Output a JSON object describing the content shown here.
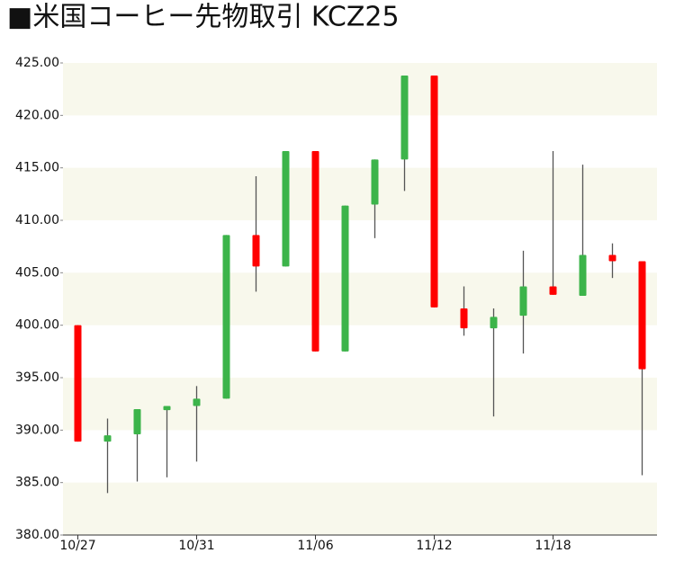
{
  "chart_data": {
    "type": "candlestick",
    "title": "■米国コーヒー先物取引 KCZ25",
    "categories": [
      "10/27",
      null,
      null,
      null,
      "10/31",
      null,
      null,
      null,
      "11/06",
      null,
      null,
      null,
      "11/12",
      null,
      null,
      null,
      "11/18",
      null,
      null,
      null
    ],
    "series": [
      {
        "open": [
          400.0,
          388.9,
          389.6,
          391.9,
          392.3,
          393.0,
          408.6,
          405.6,
          416.6,
          397.5,
          411.5,
          415.8,
          423.8,
          401.6,
          399.7,
          400.9,
          403.7,
          402.8,
          406.7,
          406.1
        ],
        "high": [
          400.0,
          391.1,
          392.0,
          392.3,
          394.2,
          408.6,
          414.2,
          416.6,
          416.6,
          411.4,
          415.8,
          423.8,
          423.8,
          403.7,
          401.6,
          407.1,
          416.6,
          415.3,
          407.8,
          406.1
        ],
        "low": [
          388.9,
          384.0,
          385.1,
          385.5,
          387.0,
          393.0,
          403.2,
          405.6,
          397.5,
          397.5,
          408.3,
          412.8,
          401.7,
          399.0,
          391.3,
          397.3,
          402.9,
          402.8,
          404.5,
          385.7
        ],
        "close": [
          388.9,
          389.5,
          392.0,
          392.3,
          393.0,
          408.6,
          405.6,
          416.6,
          397.5,
          411.4,
          415.8,
          423.8,
          401.7,
          399.7,
          400.8,
          403.7,
          402.9,
          406.7,
          406.1,
          395.8
        ]
      }
    ],
    "up_color": "#3cb44a",
    "down_color": "#ff0000",
    "wick_color": "#555555",
    "ylim": [
      380,
      425
    ],
    "yticks": [
      {
        "value": 380,
        "label": "380.00"
      },
      {
        "value": 385,
        "label": "385.00"
      },
      {
        "value": 390,
        "label": "390.00"
      },
      {
        "value": 395,
        "label": "395.00"
      },
      {
        "value": 400,
        "label": "400.00"
      },
      {
        "value": 405,
        "label": "405.00"
      },
      {
        "value": 410,
        "label": "410.00"
      },
      {
        "value": 415,
        "label": "415.00"
      },
      {
        "value": 420,
        "label": "420.00"
      },
      {
        "value": 425,
        "label": "425.00"
      }
    ],
    "bands": true,
    "band_color": "#f8f8ec"
  }
}
